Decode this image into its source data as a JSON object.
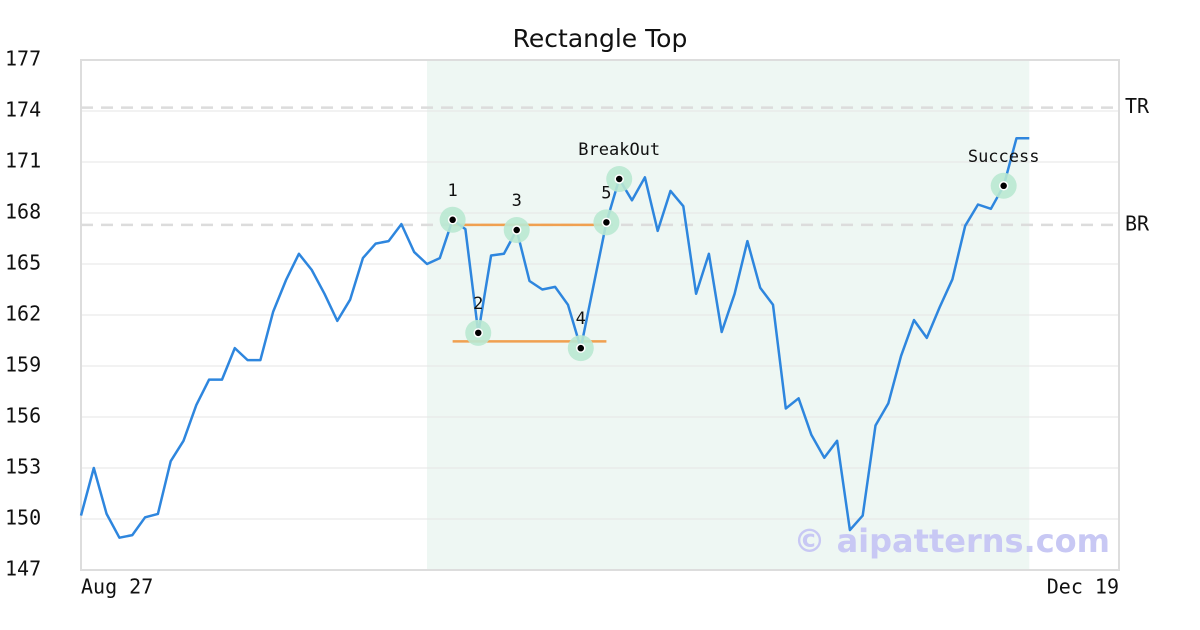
{
  "chart_data": {
    "type": "line",
    "title": "Rectangle Top",
    "color": "#2e86de",
    "x": [
      0,
      1,
      2,
      3,
      4,
      5,
      6,
      7,
      8,
      9,
      10,
      11,
      12,
      13,
      14,
      15,
      16,
      17,
      18,
      19,
      20,
      21,
      22,
      23,
      24,
      25,
      26,
      27,
      28,
      29,
      30,
      31,
      32,
      33,
      34,
      35,
      36,
      37,
      38,
      39,
      40,
      41,
      42,
      43,
      44,
      45,
      46,
      47,
      48,
      49,
      50,
      51,
      52,
      53,
      54,
      55,
      56,
      57,
      58,
      59,
      60,
      61,
      62,
      63,
      64,
      65,
      66,
      67,
      68,
      69,
      70,
      71,
      72,
      73,
      74
    ],
    "values": [
      150.2,
      153.0,
      150.3,
      148.9,
      149.05,
      150.1,
      150.3,
      153.4,
      154.6,
      156.7,
      158.2,
      158.2,
      160.05,
      159.35,
      159.35,
      162.2,
      164.05,
      165.6,
      164.65,
      163.25,
      161.65,
      162.9,
      165.35,
      166.2,
      166.35,
      167.35,
      165.7,
      165.0,
      165.35,
      167.6,
      167.05,
      160.95,
      165.5,
      165.6,
      167.0,
      164.0,
      163.5,
      163.65,
      162.6,
      160.05,
      163.75,
      167.45,
      170.0,
      168.75,
      170.1,
      166.95,
      169.3,
      168.4,
      163.25,
      165.6,
      161.0,
      163.25,
      166.35,
      163.6,
      162.6,
      156.5,
      157.1,
      154.95,
      153.6,
      154.6,
      149.35,
      150.2,
      155.5,
      156.8,
      159.6,
      161.7,
      160.65,
      162.45,
      164.1,
      167.25,
      168.5,
      168.25,
      169.6,
      172.4,
      172.4
    ],
    "xlim": [
      0,
      81
    ],
    "xticks": [
      {
        "value": 0,
        "label": "Aug 27"
      },
      {
        "value": 81,
        "label": "Dec 19"
      }
    ],
    "ylim": [
      147,
      177
    ],
    "yticks": [
      147,
      150,
      153,
      156,
      159,
      162,
      165,
      168,
      171,
      174,
      177
    ],
    "grid": true,
    "shaded_region": {
      "x": [
        27,
        74
      ],
      "color": "#eef7f3"
    },
    "levels": [
      {
        "label": "TR",
        "value": 174.2
      },
      {
        "label": "BR",
        "value": 167.3
      }
    ],
    "pattern_lines": [
      {
        "x": [
          29,
          41
        ],
        "y": 167.3
      },
      {
        "x": [
          29,
          41
        ],
        "y": 160.45
      }
    ],
    "pattern_line_color": "#f0a050",
    "pattern_points": [
      {
        "label": "1",
        "x": 29,
        "y": 167.6
      },
      {
        "label": "2",
        "x": 31,
        "y": 160.95
      },
      {
        "label": "3",
        "x": 34,
        "y": 167.0
      },
      {
        "label": "4",
        "x": 39,
        "y": 160.05
      },
      {
        "label": "5",
        "x": 41,
        "y": 167.45
      },
      {
        "label": "BreakOut",
        "x": 42,
        "y": 170.0
      },
      {
        "label": "Success",
        "x": 72,
        "y": 169.6
      }
    ],
    "watermark": "© aipatterns.com"
  }
}
